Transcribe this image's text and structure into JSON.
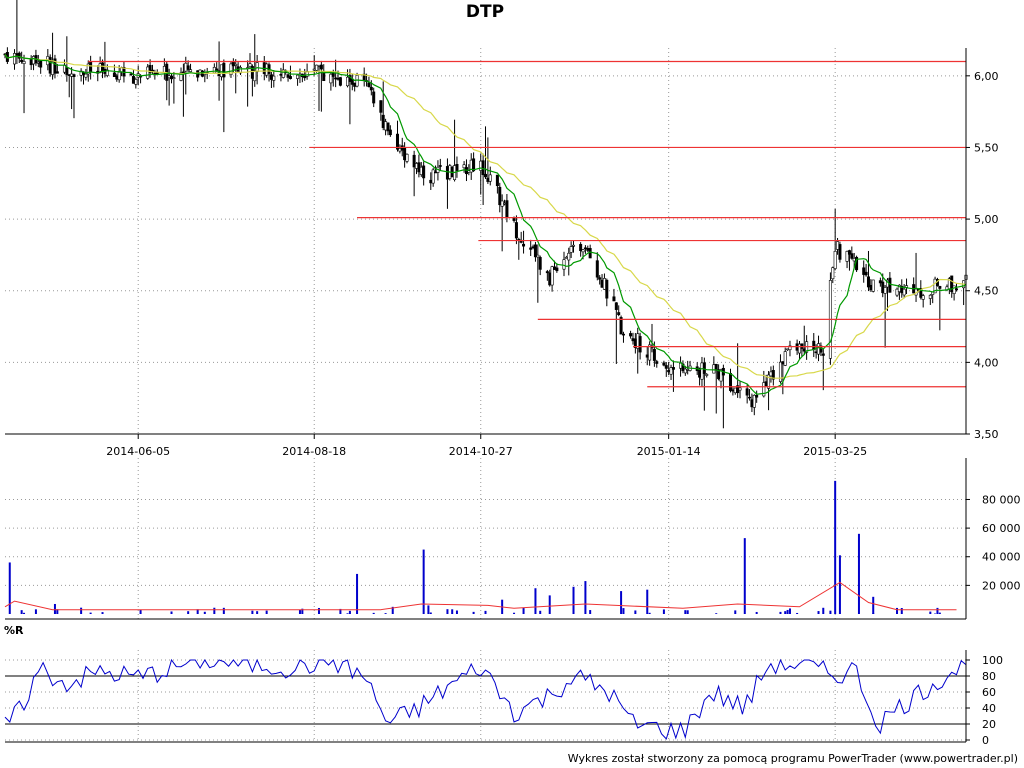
{
  "title": "DTP",
  "footer": "Wykres został stworzony za pomocą programu PowerTrader (www.powertrader.pl)",
  "colors": {
    "candle": "#000000",
    "sma_fast": "#009900",
    "sma_slow": "#d8d84a",
    "resistance": "#ee3333",
    "volume_bar": "#0000cc",
    "volume_avg": "#ee3333",
    "williams_r": "#0000cc",
    "grid": "#999999"
  },
  "chart_data": [
    {
      "type": "candlestick",
      "name": "price",
      "title": "DTP",
      "x_tick_labels": [
        "2014-06-05",
        "2014-08-18",
        "2014-10-27",
        "2015-01-14",
        "2015-03-25"
      ],
      "y_tick_labels": [
        "3,50",
        "4,00",
        "4,50",
        "5,00",
        "5,50",
        "6,00"
      ],
      "ylim": [
        3.5,
        6.25
      ],
      "grid": true,
      "x_anchors": [
        {
          "date": "2014-04-11",
          "value": 6.15
        },
        {
          "date": "2014-05-05",
          "value": 6.05
        },
        {
          "date": "2014-06-05",
          "value": 6.0
        },
        {
          "date": "2014-07-10",
          "value": 6.05
        },
        {
          "date": "2014-08-18",
          "value": 6.02
        },
        {
          "date": "2014-09-08",
          "value": 5.95
        },
        {
          "date": "2014-09-20",
          "value": 5.55
        },
        {
          "date": "2014-10-05",
          "value": 5.3
        },
        {
          "date": "2014-10-27",
          "value": 5.4
        },
        {
          "date": "2014-11-10",
          "value": 4.95
        },
        {
          "date": "2014-11-25",
          "value": 4.6
        },
        {
          "date": "2014-12-10",
          "value": 4.85
        },
        {
          "date": "2014-12-25",
          "value": 4.25
        },
        {
          "date": "2015-01-14",
          "value": 3.95
        },
        {
          "date": "2015-02-05",
          "value": 3.93
        },
        {
          "date": "2015-02-18",
          "value": 3.7
        },
        {
          "date": "2015-03-05",
          "value": 4.08
        },
        {
          "date": "2015-03-20",
          "value": 4.1
        },
        {
          "date": "2015-03-25",
          "value": 4.8
        },
        {
          "date": "2015-04-10",
          "value": 4.55
        },
        {
          "date": "2015-04-25",
          "value": 4.5
        },
        {
          "date": "2015-05-15",
          "value": 4.55
        }
      ],
      "resistance_lines": [
        {
          "from": "2014-05-15",
          "to": "2015-05-20",
          "value": 6.1
        },
        {
          "from": "2014-08-16",
          "to": "2015-05-20",
          "value": 5.5
        },
        {
          "from": "2014-09-05",
          "to": "2015-05-20",
          "value": 5.01
        },
        {
          "from": "2014-10-26",
          "to": "2015-05-20",
          "value": 4.85
        },
        {
          "from": "2014-11-20",
          "to": "2015-05-20",
          "value": 4.3
        },
        {
          "from": "2014-12-30",
          "to": "2015-05-20",
          "value": 4.11
        },
        {
          "from": "2015-01-05",
          "to": "2015-05-20",
          "value": 3.83
        }
      ]
    },
    {
      "type": "bar",
      "name": "volume",
      "y_tick_labels": [
        "20 000",
        "40 000",
        "60 000",
        "80 000"
      ],
      "ylim": [
        0,
        95000
      ],
      "grid": true,
      "spikes": [
        {
          "date": "2014-04-12",
          "value": 36000
        },
        {
          "date": "2014-05-01",
          "value": 7000
        },
        {
          "date": "2014-09-05",
          "value": 28000
        },
        {
          "date": "2014-09-20",
          "value": 5000
        },
        {
          "date": "2014-10-03",
          "value": 45000
        },
        {
          "date": "2014-10-05",
          "value": 6000
        },
        {
          "date": "2014-11-05",
          "value": 10000
        },
        {
          "date": "2014-11-19",
          "value": 18000
        },
        {
          "date": "2014-11-25",
          "value": 13000
        },
        {
          "date": "2014-12-05",
          "value": 19000
        },
        {
          "date": "2014-12-10",
          "value": 23000
        },
        {
          "date": "2014-12-25",
          "value": 16000
        },
        {
          "date": "2015-01-05",
          "value": 17000
        },
        {
          "date": "2015-02-15",
          "value": 53000
        },
        {
          "date": "2015-03-25",
          "value": 93000
        },
        {
          "date": "2015-03-27",
          "value": 41000
        },
        {
          "date": "2015-04-04",
          "value": 56000
        },
        {
          "date": "2015-04-10",
          "value": 12000
        }
      ],
      "avg_anchors": [
        {
          "date": "2014-04-10",
          "value": 5000
        },
        {
          "date": "2014-04-14",
          "value": 9000
        },
        {
          "date": "2014-04-30",
          "value": 3000
        },
        {
          "date": "2014-09-15",
          "value": 3000
        },
        {
          "date": "2014-10-02",
          "value": 7000
        },
        {
          "date": "2014-10-30",
          "value": 6000
        },
        {
          "date": "2014-11-10",
          "value": 4000
        },
        {
          "date": "2014-12-10",
          "value": 7000
        },
        {
          "date": "2015-01-20",
          "value": 4000
        },
        {
          "date": "2015-02-12",
          "value": 7000
        },
        {
          "date": "2015-03-10",
          "value": 5000
        },
        {
          "date": "2015-03-27",
          "value": 22000
        },
        {
          "date": "2015-04-08",
          "value": 8000
        },
        {
          "date": "2015-04-20",
          "value": 3000
        },
        {
          "date": "2015-05-15",
          "value": 3000
        }
      ]
    },
    {
      "type": "line",
      "name": "williams_r",
      "label": "%R",
      "y_tick_labels": [
        "0",
        "20",
        "40",
        "60",
        "80",
        "100"
      ],
      "ylim": [
        0,
        100
      ],
      "threshold_lines": [
        20,
        80
      ],
      "anchors": [
        {
          "date": "2014-04-10",
          "value": 22
        },
        {
          "date": "2014-04-15",
          "value": 30
        },
        {
          "date": "2014-04-25",
          "value": 90
        },
        {
          "date": "2014-05-05",
          "value": 70
        },
        {
          "date": "2014-05-20",
          "value": 85
        },
        {
          "date": "2014-06-05",
          "value": 78
        },
        {
          "date": "2014-07-01",
          "value": 100
        },
        {
          "date": "2014-07-20",
          "value": 95
        },
        {
          "date": "2014-08-10",
          "value": 90
        },
        {
          "date": "2014-08-25",
          "value": 100
        },
        {
          "date": "2014-09-08",
          "value": 80
        },
        {
          "date": "2014-09-18",
          "value": 20
        },
        {
          "date": "2014-10-01",
          "value": 40
        },
        {
          "date": "2014-10-15",
          "value": 70
        },
        {
          "date": "2014-10-27",
          "value": 92
        },
        {
          "date": "2014-11-10",
          "value": 35
        },
        {
          "date": "2014-11-25",
          "value": 55
        },
        {
          "date": "2014-12-05",
          "value": 80
        },
        {
          "date": "2014-12-20",
          "value": 60
        },
        {
          "date": "2014-12-30",
          "value": 20
        },
        {
          "date": "2015-01-20",
          "value": 10
        },
        {
          "date": "2015-02-01",
          "value": 60
        },
        {
          "date": "2015-02-15",
          "value": 40
        },
        {
          "date": "2015-02-25",
          "value": 95
        },
        {
          "date": "2015-03-10",
          "value": 95
        },
        {
          "date": "2015-03-25",
          "value": 80
        },
        {
          "date": "2015-04-02",
          "value": 90
        },
        {
          "date": "2015-04-12",
          "value": 20
        },
        {
          "date": "2015-04-25",
          "value": 50
        },
        {
          "date": "2015-05-10",
          "value": 80
        },
        {
          "date": "2015-05-16",
          "value": 90
        }
      ]
    }
  ]
}
